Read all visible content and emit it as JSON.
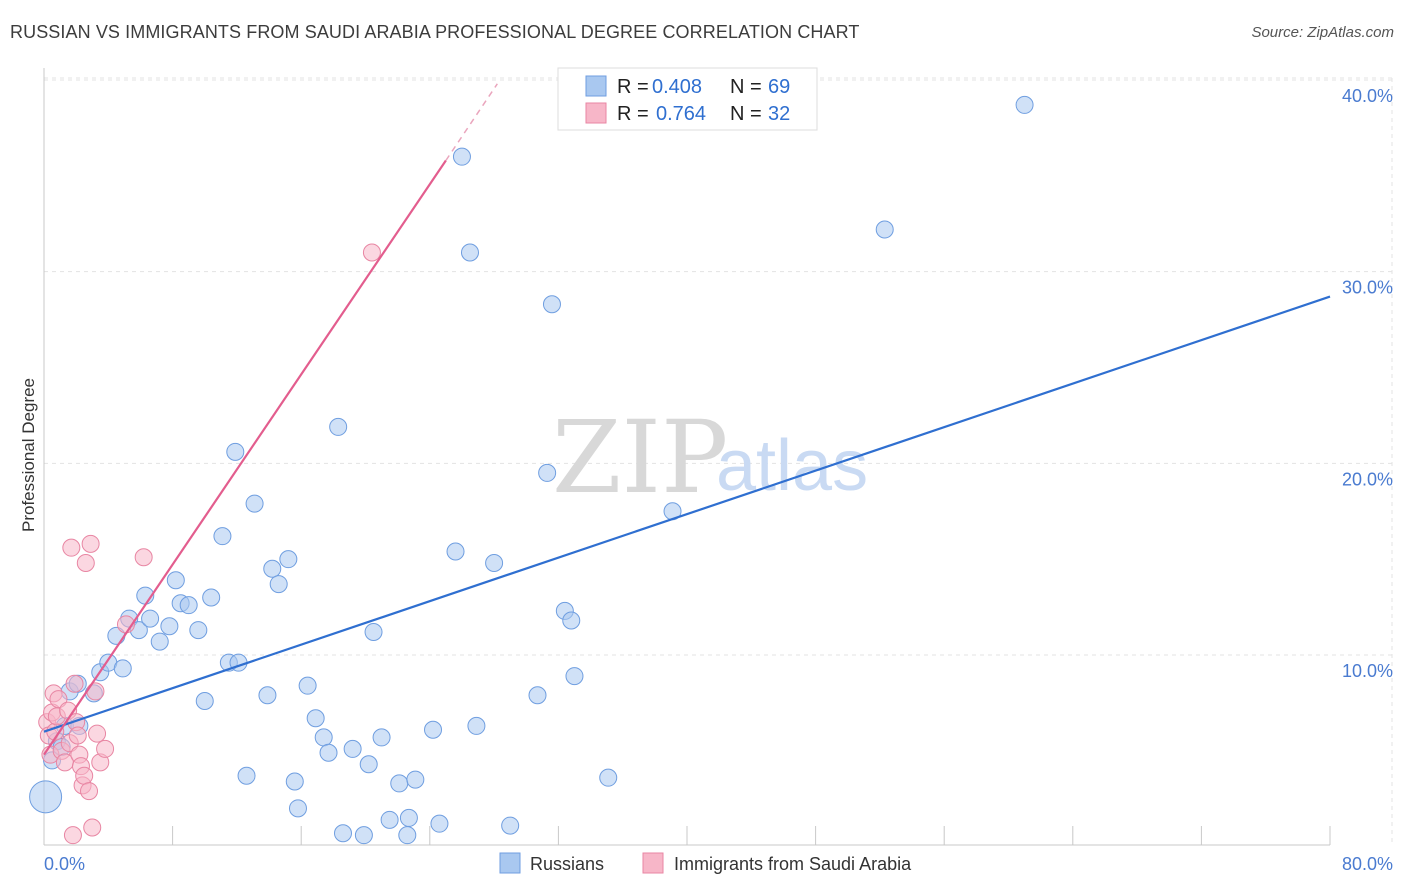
{
  "title": "RUSSIAN VS IMMIGRANTS FROM SAUDI ARABIA PROFESSIONAL DEGREE CORRELATION CHART",
  "source": "Source: ZipAtlas.com",
  "watermark": {
    "zip": "ZIP",
    "atlas": "atlas"
  },
  "legend": [
    {
      "label_r": "R =",
      "r": "0.408",
      "label_n": "N =",
      "n": "69",
      "color": "#a9c8f0",
      "stroke": "#6f9ee0"
    },
    {
      "label_r": "R =",
      "r": "0.764",
      "label_n": "N =",
      "n": "32",
      "color": "#f7b6c8",
      "stroke": "#e886a3"
    }
  ],
  "chart_data": {
    "type": "scatter",
    "title": "RUSSIAN VS IMMIGRANTS FROM SAUDI ARABIA PROFESSIONAL DEGREE CORRELATION CHART",
    "xlabel": "",
    "ylabel": "Professional Degree",
    "xlim": [
      0,
      80
    ],
    "ylim": [
      0,
      41
    ],
    "x_tick_labels": [
      {
        "value": 0,
        "label": "0.0%"
      },
      {
        "value": 80,
        "label": "80.0%"
      }
    ],
    "y_tick_labels": [
      {
        "value": 10,
        "label": "10.0%"
      },
      {
        "value": 20,
        "label": "20.0%"
      },
      {
        "value": 30,
        "label": "30.0%"
      },
      {
        "value": 40,
        "label": "40.0%"
      }
    ],
    "grid": true,
    "series": [
      {
        "name": "Russians",
        "color": "#a9c8f0",
        "stroke": "#6f9ee0",
        "trend": {
          "x0": 0,
          "y0": 6.0,
          "x1": 80,
          "y1": 28.7,
          "color": "#2f6fd0"
        },
        "points": [
          [
            0.1,
            2.6
          ],
          [
            0.5,
            4.5
          ],
          [
            0.8,
            5.5
          ],
          [
            1.1,
            5.2
          ],
          [
            1.3,
            6.3
          ],
          [
            1.6,
            8.1
          ],
          [
            2.1,
            8.5
          ],
          [
            2.2,
            6.3
          ],
          [
            3.1,
            8.0
          ],
          [
            3.5,
            9.1
          ],
          [
            4.0,
            9.6
          ],
          [
            4.5,
            11.0
          ],
          [
            4.9,
            9.3
          ],
          [
            5.3,
            11.9
          ],
          [
            5.9,
            11.3
          ],
          [
            6.3,
            13.1
          ],
          [
            6.6,
            11.9
          ],
          [
            7.2,
            10.7
          ],
          [
            7.8,
            11.5
          ],
          [
            8.2,
            13.9
          ],
          [
            8.5,
            12.7
          ],
          [
            9.0,
            12.6
          ],
          [
            9.6,
            11.3
          ],
          [
            10.0,
            7.6
          ],
          [
            10.4,
            13.0
          ],
          [
            11.1,
            16.2
          ],
          [
            11.5,
            9.6
          ],
          [
            11.9,
            20.6
          ],
          [
            12.1,
            9.6
          ],
          [
            12.6,
            3.7
          ],
          [
            13.1,
            17.9
          ],
          [
            13.9,
            7.9
          ],
          [
            14.2,
            14.5
          ],
          [
            14.6,
            13.7
          ],
          [
            15.2,
            15.0
          ],
          [
            15.6,
            3.4
          ],
          [
            15.8,
            2.0
          ],
          [
            16.4,
            8.4
          ],
          [
            16.9,
            6.7
          ],
          [
            17.4,
            5.7
          ],
          [
            17.7,
            4.9
          ],
          [
            18.3,
            21.9
          ],
          [
            18.6,
            0.7
          ],
          [
            19.2,
            5.1
          ],
          [
            19.9,
            0.6
          ],
          [
            20.2,
            4.3
          ],
          [
            20.5,
            11.2
          ],
          [
            21.0,
            5.7
          ],
          [
            21.5,
            1.4
          ],
          [
            22.1,
            3.3
          ],
          [
            22.6,
            0.6
          ],
          [
            22.7,
            1.5
          ],
          [
            23.1,
            3.5
          ],
          [
            24.2,
            6.1
          ],
          [
            24.6,
            1.2
          ],
          [
            25.6,
            15.4
          ],
          [
            26.0,
            36.0
          ],
          [
            26.5,
            31.0
          ],
          [
            26.9,
            6.3
          ],
          [
            28.0,
            14.8
          ],
          [
            29.0,
            1.1
          ],
          [
            30.7,
            7.9
          ],
          [
            31.3,
            19.5
          ],
          [
            31.6,
            28.3
          ],
          [
            32.4,
            12.3
          ],
          [
            32.8,
            11.8
          ],
          [
            33.0,
            8.9
          ],
          [
            35.1,
            3.6
          ],
          [
            39.1,
            17.5
          ],
          [
            52.3,
            32.2
          ],
          [
            61.0,
            38.7
          ]
        ],
        "big_point": [
          0.1,
          2.6
        ]
      },
      {
        "name": "Immigrants from Saudi Arabia",
        "color": "#f7b6c8",
        "stroke": "#e886a3",
        "trend": {
          "x0": 0,
          "y0": 4.8,
          "x1": 25.0,
          "y1": 35.8,
          "x1_dash": 28.2,
          "y1_dash": 39.8,
          "color": "#e35d8e"
        },
        "points": [
          [
            0.2,
            6.5
          ],
          [
            0.3,
            5.8
          ],
          [
            0.4,
            4.8
          ],
          [
            0.5,
            7.0
          ],
          [
            0.6,
            8.0
          ],
          [
            0.7,
            6.0
          ],
          [
            0.8,
            6.8
          ],
          [
            0.9,
            7.7
          ],
          [
            1.1,
            5.0
          ],
          [
            1.3,
            4.4
          ],
          [
            1.5,
            7.1
          ],
          [
            1.6,
            5.4
          ],
          [
            1.8,
            0.6
          ],
          [
            1.7,
            15.6
          ],
          [
            1.9,
            8.5
          ],
          [
            2.0,
            6.5
          ],
          [
            2.2,
            4.8
          ],
          [
            2.3,
            4.2
          ],
          [
            2.4,
            3.2
          ],
          [
            2.5,
            3.7
          ],
          [
            2.6,
            14.8
          ],
          [
            2.8,
            2.9
          ],
          [
            2.9,
            15.8
          ],
          [
            3.0,
            1.0
          ],
          [
            3.2,
            8.1
          ],
          [
            3.3,
            5.9
          ],
          [
            3.5,
            4.4
          ],
          [
            3.8,
            5.1
          ],
          [
            5.1,
            11.6
          ],
          [
            6.2,
            15.1
          ],
          [
            20.4,
            31.0
          ],
          [
            2.1,
            5.8
          ]
        ]
      }
    ]
  },
  "bottom_legend": [
    {
      "label": "Russians",
      "color": "#a9c8f0",
      "stroke": "#6f9ee0"
    },
    {
      "label": "Immigrants from Saudi Arabia",
      "color": "#f7b6c8",
      "stroke": "#e886a3"
    }
  ]
}
